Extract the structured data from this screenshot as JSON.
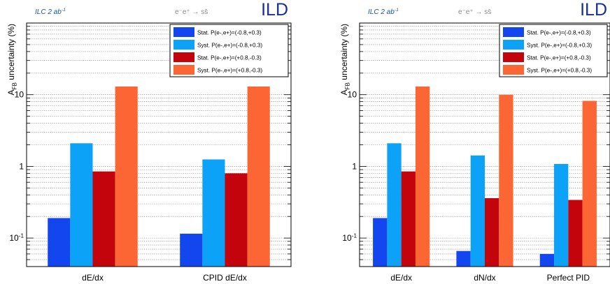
{
  "colors": {
    "stat_neg": "#1446f0",
    "syst_neg": "#0ba2f8",
    "stat_pos": "#c4040c",
    "syst_pos": "#fb6634",
    "ilc_label": "#1a55a8",
    "ild_label": "#1a2f95"
  },
  "chart_data": [
    {
      "type": "bar",
      "log_y": true,
      "ylim": [
        0.04,
        100
      ],
      "ylabel": "A_FB uncertainty (%)",
      "y_tick_labels": [
        "10^-1",
        "1",
        "10"
      ],
      "grid": true,
      "legend_position": "top-right",
      "header": {
        "ilc": "ILC 2 ab^-1",
        "process": "e⁻e⁺ → ss̄",
        "ild": "ILD"
      },
      "categories": [
        "dE/dx",
        "CPID dE/dx"
      ],
      "series": [
        {
          "name": "Stat. P(e-,e+)=(-0.8,+0.3)",
          "color": "#1446f0",
          "values": [
            0.19,
            0.115
          ]
        },
        {
          "name": "Syst. P(e-,e+)=(-0.8,+0.3)",
          "color": "#0ba2f8",
          "values": [
            2.1,
            1.25
          ]
        },
        {
          "name": "Stat. P(e-,e+)=(+0.8,-0.3)",
          "color": "#c4040c",
          "values": [
            0.85,
            0.8
          ]
        },
        {
          "name": "Syst. P(e-,e+)=(+0.8,-0.3)",
          "color": "#fb6634",
          "values": [
            13.0,
            13.0
          ]
        }
      ]
    },
    {
      "type": "bar",
      "log_y": true,
      "ylim": [
        0.04,
        100
      ],
      "ylabel": "A_FB uncertainty (%)",
      "y_tick_labels": [
        "10^-1",
        "1",
        "10"
      ],
      "grid": true,
      "legend_position": "top-right",
      "header": {
        "ilc": "ILC 2 ab^-1",
        "process": "e⁻e⁺ → ss̄",
        "ild": "ILD"
      },
      "categories": [
        "dE/dx",
        "dN/dx",
        "Perfect PID"
      ],
      "series": [
        {
          "name": "Stat. P(e-,e+)=(-0.8,+0.3)",
          "color": "#1446f0",
          "values": [
            0.19,
            0.066,
            0.06
          ]
        },
        {
          "name": "Syst. P(e-,e+)=(-0.8,+0.3)",
          "color": "#0ba2f8",
          "values": [
            2.1,
            1.42,
            1.08
          ]
        },
        {
          "name": "Stat. P(e-,e+)=(+0.8,-0.3)",
          "color": "#c4040c",
          "values": [
            0.85,
            0.36,
            0.34
          ]
        },
        {
          "name": "Syst. P(e-,e+)=(+0.8,-0.3)",
          "color": "#fb6634",
          "values": [
            13.0,
            10.0,
            8.2
          ]
        }
      ]
    }
  ]
}
